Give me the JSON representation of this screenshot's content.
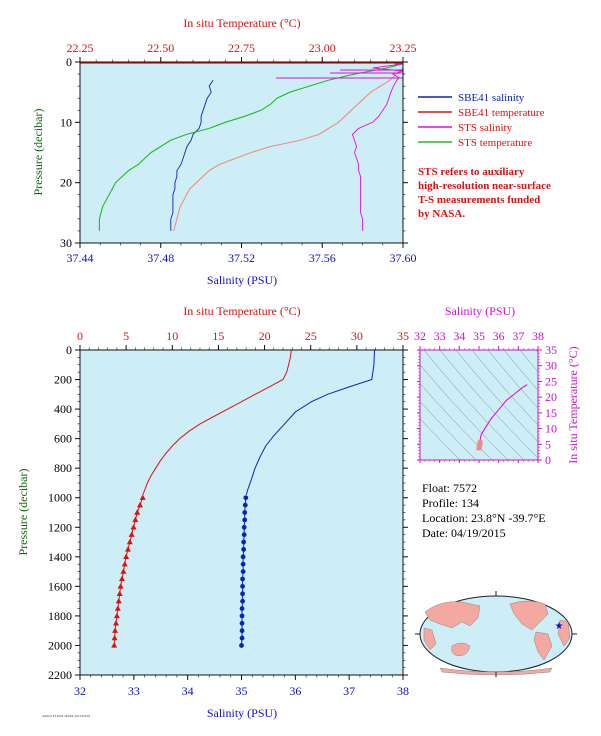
{
  "colors": {
    "plot_bg": "#cdeef7",
    "sbe_salinity": "#0b24b8",
    "sbe_temperature": "#e01010",
    "sts_salinity": "#e010e0",
    "sts_temperature": "#22bb22",
    "salmon": "#f08c80",
    "axis_red": "#dd1111",
    "axis_blue": "#1111cc",
    "axis_green": "#116611",
    "axis_magenta": "#cc11cc"
  },
  "chart_data": [
    {
      "id": "near-surface",
      "type": "line",
      "xlabel_top": "In situ Temperature (°C)",
      "xlabel_bottom": "Salinity (PSU)",
      "ylabel": "Pressure (decibar)",
      "ticks_top": [
        "22.25",
        "22.50",
        "22.75",
        "23.00",
        "23.25"
      ],
      "ticks_bottom": [
        "37.44",
        "37.48",
        "37.52",
        "37.56",
        "37.60"
      ],
      "ticks_y": [
        "0",
        "10",
        "20",
        "30"
      ],
      "temp_range": [
        22.25,
        23.25
      ],
      "sal_range": [
        37.44,
        37.6
      ],
      "pressure_range": [
        0,
        30
      ],
      "legend": [
        {
          "label": "SBE41 salinity",
          "color": "#0b24b8"
        },
        {
          "label": "SBE41 temperature",
          "color": "#e01010"
        },
        {
          "label": "STS salinity",
          "color": "#e010e0"
        },
        {
          "label": "STS temperature",
          "color": "#22bb22"
        }
      ],
      "note_lines": [
        "STS refers to auxiliary",
        "high-resolution near-surface",
        "T-S measurements funded",
        "by NASA."
      ],
      "series": [
        {
          "name": "SBE41 salinity",
          "axis": "salinity",
          "color": "#0b24b8",
          "points": [
            [
              37.506,
              3
            ],
            [
              37.504,
              4
            ],
            [
              37.505,
              5
            ],
            [
              37.503,
              6
            ],
            [
              37.502,
              7
            ],
            [
              37.501,
              8
            ],
            [
              37.5,
              9
            ],
            [
              37.5,
              10
            ],
            [
              37.499,
              11
            ],
            [
              37.496,
              12
            ],
            [
              37.495,
              13
            ],
            [
              37.493,
              14
            ],
            [
              37.492,
              15
            ],
            [
              37.491,
              16
            ],
            [
              37.49,
              17
            ],
            [
              37.488,
              18
            ],
            [
              37.488,
              19
            ],
            [
              37.487,
              20
            ],
            [
              37.487,
              21
            ],
            [
              37.486,
              22
            ],
            [
              37.486,
              23
            ],
            [
              37.486,
              24
            ],
            [
              37.486,
              25
            ],
            [
              37.485,
              26
            ],
            [
              37.485,
              27
            ],
            [
              37.485,
              28
            ]
          ]
        },
        {
          "name": "SBE41 temperature",
          "axis": "temperature",
          "color": "#f08c80",
          "points": [
            [
              23.25,
              1
            ],
            [
              23.23,
              2
            ],
            [
              23.21,
              3
            ],
            [
              23.18,
              4
            ],
            [
              23.15,
              5
            ],
            [
              23.13,
              6
            ],
            [
              23.11,
              7
            ],
            [
              23.09,
              8
            ],
            [
              23.07,
              9
            ],
            [
              23.05,
              10
            ],
            [
              23.02,
              11
            ],
            [
              22.99,
              12
            ],
            [
              22.93,
              13
            ],
            [
              22.84,
              14
            ],
            [
              22.78,
              15
            ],
            [
              22.73,
              16
            ],
            [
              22.68,
              17
            ],
            [
              22.65,
              18
            ],
            [
              22.63,
              19
            ],
            [
              22.61,
              20
            ],
            [
              22.59,
              21
            ],
            [
              22.58,
              22
            ],
            [
              22.57,
              23
            ],
            [
              22.56,
              24
            ],
            [
              22.555,
              25
            ],
            [
              22.55,
              26
            ],
            [
              22.545,
              27
            ],
            [
              22.54,
              28
            ]
          ]
        },
        {
          "name": "STS salinity",
          "axis": "salinity",
          "color": "#e010e0",
          "points": [
            [
              37.598,
              0.4
            ],
            [
              37.585,
              1.0
            ],
            [
              37.6,
              1.5
            ],
            [
              37.595,
              2.0
            ],
            [
              37.598,
              2.6
            ],
            [
              37.597,
              3.0
            ],
            [
              37.596,
              3.6
            ],
            [
              37.595,
              4.2
            ],
            [
              37.594,
              5
            ],
            [
              37.593,
              6
            ],
            [
              37.592,
              7
            ],
            [
              37.59,
              8
            ],
            [
              37.588,
              9
            ],
            [
              37.585,
              10
            ],
            [
              37.578,
              11
            ],
            [
              37.575,
              12
            ],
            [
              37.576,
              13
            ],
            [
              37.577,
              14
            ],
            [
              37.576,
              15
            ],
            [
              37.577,
              16
            ],
            [
              37.578,
              17
            ],
            [
              37.578,
              18
            ],
            [
              37.579,
              19
            ],
            [
              37.579,
              20
            ],
            [
              37.579,
              21
            ],
            [
              37.579,
              22
            ],
            [
              37.579,
              23
            ],
            [
              37.579,
              24
            ],
            [
              37.579,
              25
            ],
            [
              37.58,
              26
            ],
            [
              37.58,
              27
            ],
            [
              37.58,
              28
            ]
          ]
        },
        {
          "name": "STS temperature",
          "axis": "temperature",
          "color": "#22bb22",
          "points": [
            [
              23.25,
              0.3
            ],
            [
              23.2,
              1
            ],
            [
              23.1,
              2
            ],
            [
              23.02,
              3
            ],
            [
              22.96,
              4
            ],
            [
              22.9,
              5
            ],
            [
              22.86,
              6
            ],
            [
              22.84,
              7
            ],
            [
              22.81,
              8
            ],
            [
              22.76,
              9
            ],
            [
              22.7,
              10
            ],
            [
              22.65,
              11
            ],
            [
              22.58,
              12
            ],
            [
              22.53,
              13
            ],
            [
              22.5,
              14
            ],
            [
              22.47,
              15
            ],
            [
              22.45,
              16
            ],
            [
              22.43,
              17
            ],
            [
              22.4,
              18
            ],
            [
              22.38,
              19
            ],
            [
              22.36,
              20
            ],
            [
              22.35,
              21
            ],
            [
              22.34,
              22
            ],
            [
              22.33,
              23
            ],
            [
              22.32,
              24
            ],
            [
              22.315,
              25
            ],
            [
              22.31,
              26
            ],
            [
              22.31,
              27
            ],
            [
              22.31,
              28
            ]
          ]
        }
      ]
    },
    {
      "id": "deep-profile",
      "type": "line",
      "xlabel_top": "In situ Temperature (°C)",
      "xlabel_bottom": "Salinity (PSU)",
      "ylabel": "Pressure (decibar)",
      "ticks_top": [
        "0",
        "5",
        "10",
        "15",
        "20",
        "25",
        "30",
        "35"
      ],
      "ticks_bottom": [
        "32",
        "33",
        "34",
        "35",
        "36",
        "37",
        "38"
      ],
      "ticks_y": [
        "0",
        "200",
        "400",
        "600",
        "800",
        "1000",
        "1200",
        "1400",
        "1600",
        "1800",
        "2000",
        "2200"
      ],
      "temp_range": [
        0,
        35
      ],
      "sal_range": [
        32,
        38
      ],
      "pressure_range": [
        0,
        2200
      ],
      "series": [
        {
          "name": "Temperature",
          "axis": "temperature",
          "color": "#e01010",
          "points": [
            [
              22.9,
              0
            ],
            [
              22.8,
              50
            ],
            [
              22.6,
              100
            ],
            [
              22.4,
              150
            ],
            [
              22.0,
              200
            ],
            [
              20.5,
              250
            ],
            [
              19.0,
              300
            ],
            [
              17.5,
              350
            ],
            [
              16.0,
              400
            ],
            [
              14.5,
              450
            ],
            [
              13.0,
              500
            ],
            [
              11.8,
              550
            ],
            [
              10.8,
              600
            ],
            [
              10.0,
              650
            ],
            [
              9.3,
              700
            ],
            [
              8.7,
              750
            ],
            [
              8.2,
              800
            ],
            [
              7.7,
              850
            ],
            [
              7.3,
              900
            ],
            [
              7.0,
              950
            ],
            [
              6.8,
              980
            ]
          ]
        },
        {
          "name": "Salinity",
          "axis": "salinity",
          "color": "#0b24b8",
          "points": [
            [
              37.47,
              0
            ],
            [
              37.46,
              100
            ],
            [
              37.42,
              200
            ],
            [
              37.0,
              250
            ],
            [
              36.6,
              300
            ],
            [
              36.3,
              350
            ],
            [
              36.0,
              420
            ],
            [
              35.8,
              500
            ],
            [
              35.6,
              580
            ],
            [
              35.45,
              650
            ],
            [
              35.35,
              720
            ],
            [
              35.25,
              800
            ],
            [
              35.18,
              880
            ],
            [
              35.12,
              940
            ],
            [
              35.09,
              980
            ]
          ]
        }
      ],
      "markers": [
        {
          "name": "Temperature samples",
          "axis": "temperature",
          "color": "#e01010",
          "shape": "triangle",
          "points": [
            [
              6.8,
              1000
            ],
            [
              6.5,
              1050
            ],
            [
              6.2,
              1100
            ],
            [
              6.0,
              1150
            ],
            [
              5.8,
              1200
            ],
            [
              5.6,
              1250
            ],
            [
              5.4,
              1300
            ],
            [
              5.2,
              1350
            ],
            [
              5.0,
              1400
            ],
            [
              4.85,
              1450
            ],
            [
              4.7,
              1500
            ],
            [
              4.55,
              1550
            ],
            [
              4.4,
              1600
            ],
            [
              4.3,
              1650
            ],
            [
              4.2,
              1700
            ],
            [
              4.1,
              1750
            ],
            [
              4.0,
              1800
            ],
            [
              3.9,
              1850
            ],
            [
              3.8,
              1900
            ],
            [
              3.75,
              1950
            ],
            [
              3.7,
              2000
            ]
          ]
        },
        {
          "name": "Salinity samples",
          "axis": "salinity",
          "color": "#0b24b8",
          "shape": "circle",
          "points": [
            [
              35.08,
              1000
            ],
            [
              35.07,
              1050
            ],
            [
              35.06,
              1100
            ],
            [
              35.06,
              1150
            ],
            [
              35.05,
              1200
            ],
            [
              35.05,
              1250
            ],
            [
              35.04,
              1300
            ],
            [
              35.04,
              1350
            ],
            [
              35.03,
              1400
            ],
            [
              35.03,
              1450
            ],
            [
              35.03,
              1500
            ],
            [
              35.02,
              1550
            ],
            [
              35.02,
              1600
            ],
            [
              35.02,
              1650
            ],
            [
              35.02,
              1700
            ],
            [
              35.01,
              1750
            ],
            [
              35.01,
              1800
            ],
            [
              35.01,
              1850
            ],
            [
              35.01,
              1900
            ],
            [
              35.01,
              1950
            ],
            [
              35.0,
              2000
            ]
          ]
        }
      ]
    },
    {
      "id": "ts-diagram",
      "type": "line",
      "xlabel_top": "Salinity (PSU)",
      "ylabel_right": "In situ Temperature (°C)",
      "ticks_top": [
        "32",
        "33",
        "34",
        "35",
        "36",
        "37",
        "38"
      ],
      "ticks_right": [
        "0",
        "5",
        "10",
        "15",
        "20",
        "25",
        "30",
        "35"
      ],
      "sal_range": [
        32,
        38
      ],
      "temp_range": [
        0,
        35
      ],
      "series": [
        {
          "name": "T-S",
          "color": "#e010e0",
          "points": [
            [
              35.0,
              3.7
            ],
            [
              35.05,
              6
            ],
            [
              35.1,
              8
            ],
            [
              35.3,
              10
            ],
            [
              35.6,
              13
            ],
            [
              36.0,
              16
            ],
            [
              36.4,
              19
            ],
            [
              36.8,
              21
            ],
            [
              37.2,
              23
            ],
            [
              37.45,
              24
            ]
          ]
        }
      ]
    }
  ],
  "info": {
    "float": "Float:  7572",
    "profile": "Profile:  134",
    "location": "Location:  23.8°N  -39.7°E",
    "date": "Date:  04/19/2015"
  },
  "footer": {
    "tiny_text": "ARGO FLOAT DATA  2015/04/19"
  },
  "map": {
    "marker_lat": 23.8,
    "marker_lon": -39.7
  }
}
